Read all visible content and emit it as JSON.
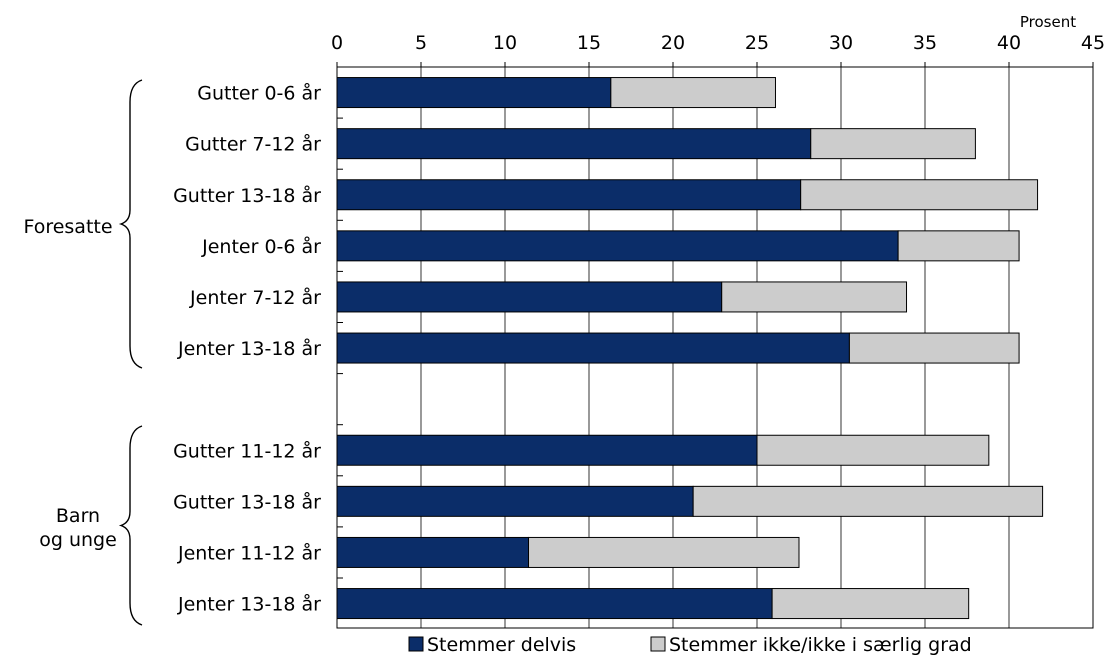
{
  "chart_data": {
    "type": "bar",
    "orientation": "horizontal",
    "stacked": true,
    "x_unit_label": "Prosent",
    "xlim": [
      0,
      45
    ],
    "xticks": [
      0,
      5,
      10,
      15,
      20,
      25,
      30,
      35,
      40,
      45
    ],
    "grid": "vertical",
    "legend_position": "bottom",
    "groups": [
      {
        "label": "Foresatte",
        "categories": [
          0,
          1,
          2,
          3,
          4,
          5
        ]
      },
      {
        "label": "Barn og unge",
        "categories": [
          6,
          7,
          8,
          9
        ]
      }
    ],
    "categories": [
      "Gutter 0-6 år",
      "Gutter 7-12 år",
      "Gutter 13-18 år",
      "Jenter 0-6 år",
      "Jenter 7-12 år",
      "Jenter 13-18 år",
      "Gutter 11-12 år",
      "Gutter 13-18 år",
      "Jenter 11-12 år",
      "Jenter 13-18 år"
    ],
    "series": [
      {
        "name": "Stemmer delvis",
        "color": "#0b2d69",
        "values": [
          16.3,
          28.2,
          27.6,
          33.4,
          22.9,
          30.5,
          25.0,
          21.2,
          11.4,
          25.9
        ]
      },
      {
        "name": "Stemmer ikke/ikke i særlig grad",
        "color": "#cccccc",
        "values": [
          9.8,
          9.8,
          14.1,
          7.2,
          11.0,
          10.1,
          13.8,
          20.8,
          16.1,
          11.7
        ]
      }
    ]
  }
}
